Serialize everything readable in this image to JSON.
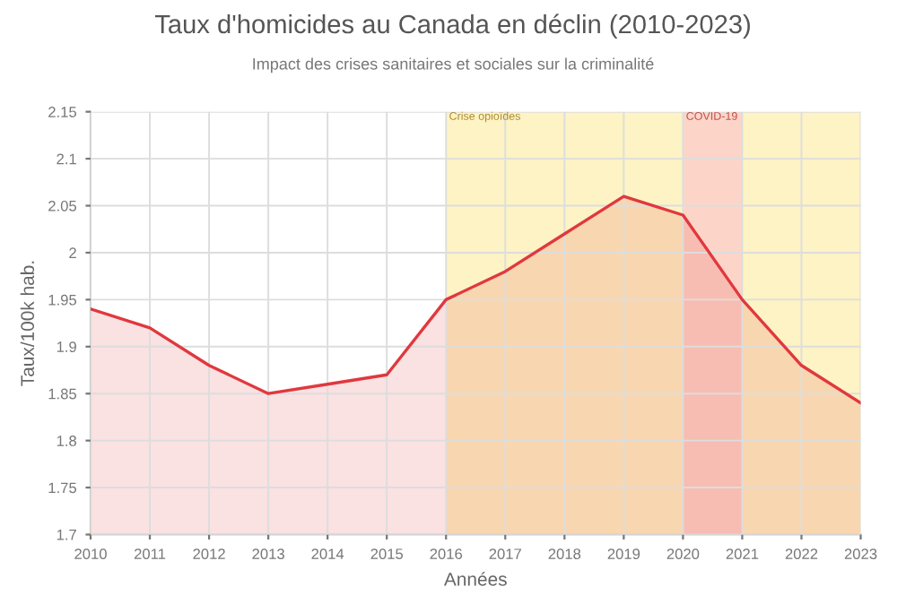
{
  "chart_data": {
    "type": "area",
    "title": "Taux d'homicides au Canada en déclin (2010-2023)",
    "subtitle": "Impact des crises sanitaires et sociales sur la criminalité",
    "xlabel": "Années",
    "ylabel": "Taux/100k hab.",
    "x": [
      2010,
      2011,
      2012,
      2013,
      2014,
      2015,
      2016,
      2017,
      2018,
      2019,
      2020,
      2021,
      2022,
      2023
    ],
    "series": [
      {
        "color": "#e0383e",
        "values": [
          1.94,
          1.92,
          1.88,
          1.85,
          1.86,
          1.87,
          1.95,
          1.98,
          2.02,
          2.06,
          2.04,
          1.95,
          1.88,
          1.84
        ]
      }
    ],
    "xlim": [
      2010,
      2023
    ],
    "xticks": [
      2010,
      2011,
      2012,
      2013,
      2014,
      2015,
      2016,
      2017,
      2018,
      2019,
      2020,
      2021,
      2022,
      2023
    ],
    "ylim": [
      1.7,
      2.15
    ],
    "yticks": [
      1.7,
      1.75,
      1.8,
      1.85,
      1.9,
      1.95,
      2,
      2.05,
      2.1,
      2.15
    ],
    "bands": [
      {
        "axis": "x",
        "from": 2016,
        "to": 2023,
        "label": "Crise opioïdes",
        "color": "#fdf3c4"
      },
      {
        "axis": "x",
        "from": 2020,
        "to": 2021,
        "label": "COVID-19",
        "color": "#fcd5c8"
      }
    ],
    "grid": true
  }
}
